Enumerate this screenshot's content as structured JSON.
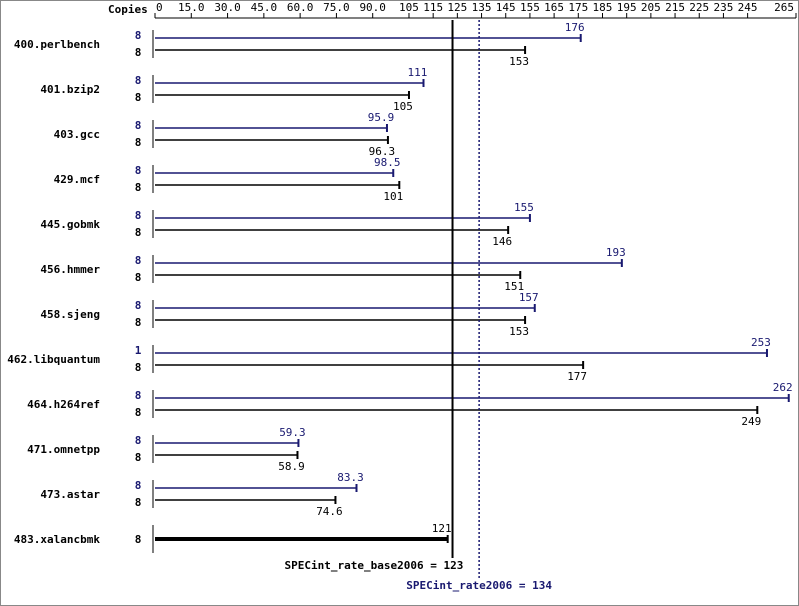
{
  "chart_data": {
    "type": "bar",
    "orientation": "horizontal",
    "copies_label": "Copies",
    "categories": [
      "400.perlbench",
      "401.bzip2",
      "403.gcc",
      "429.mcf",
      "445.gobmk",
      "456.hmmer",
      "458.sjeng",
      "462.libquantum",
      "464.h264ref",
      "471.omnetpp",
      "473.astar",
      "483.xalancbmk"
    ],
    "series": [
      {
        "color": "#191970",
        "copies": [
          8,
          8,
          8,
          8,
          8,
          8,
          8,
          1,
          8,
          8,
          8,
          null
        ],
        "values": [
          176,
          111,
          95.9,
          98.5,
          155,
          193,
          157,
          253,
          262,
          59.3,
          83.3,
          null
        ]
      },
      {
        "color": "#000000",
        "copies": [
          8,
          8,
          8,
          8,
          8,
          8,
          8,
          8,
          8,
          8,
          8,
          8
        ],
        "values": [
          153,
          105,
          96.3,
          101,
          146,
          151,
          153,
          177,
          249,
          58.9,
          74.6,
          121
        ]
      }
    ],
    "xlim": [
      0,
      265
    ],
    "xticks": [
      0,
      {
        "value": 15,
        "label": "15.0"
      },
      {
        "value": 30,
        "label": "30.0"
      },
      {
        "value": 45,
        "label": "45.0"
      },
      {
        "value": 60,
        "label": "60.0"
      },
      {
        "value": 75,
        "label": "75.0"
      },
      {
        "value": 90,
        "label": "90.0"
      },
      105,
      115,
      125,
      135,
      145,
      155,
      165,
      175,
      185,
      195,
      205,
      215,
      225,
      235,
      245,
      265
    ],
    "reference_lines": [
      {
        "label": "SPECint_rate_base2006 = 123",
        "value": 123,
        "color": "#000000",
        "style": "solid"
      },
      {
        "label": "SPECint_rate2006 = 134",
        "value": 134,
        "color": "#191970",
        "style": "dotted"
      }
    ]
  }
}
